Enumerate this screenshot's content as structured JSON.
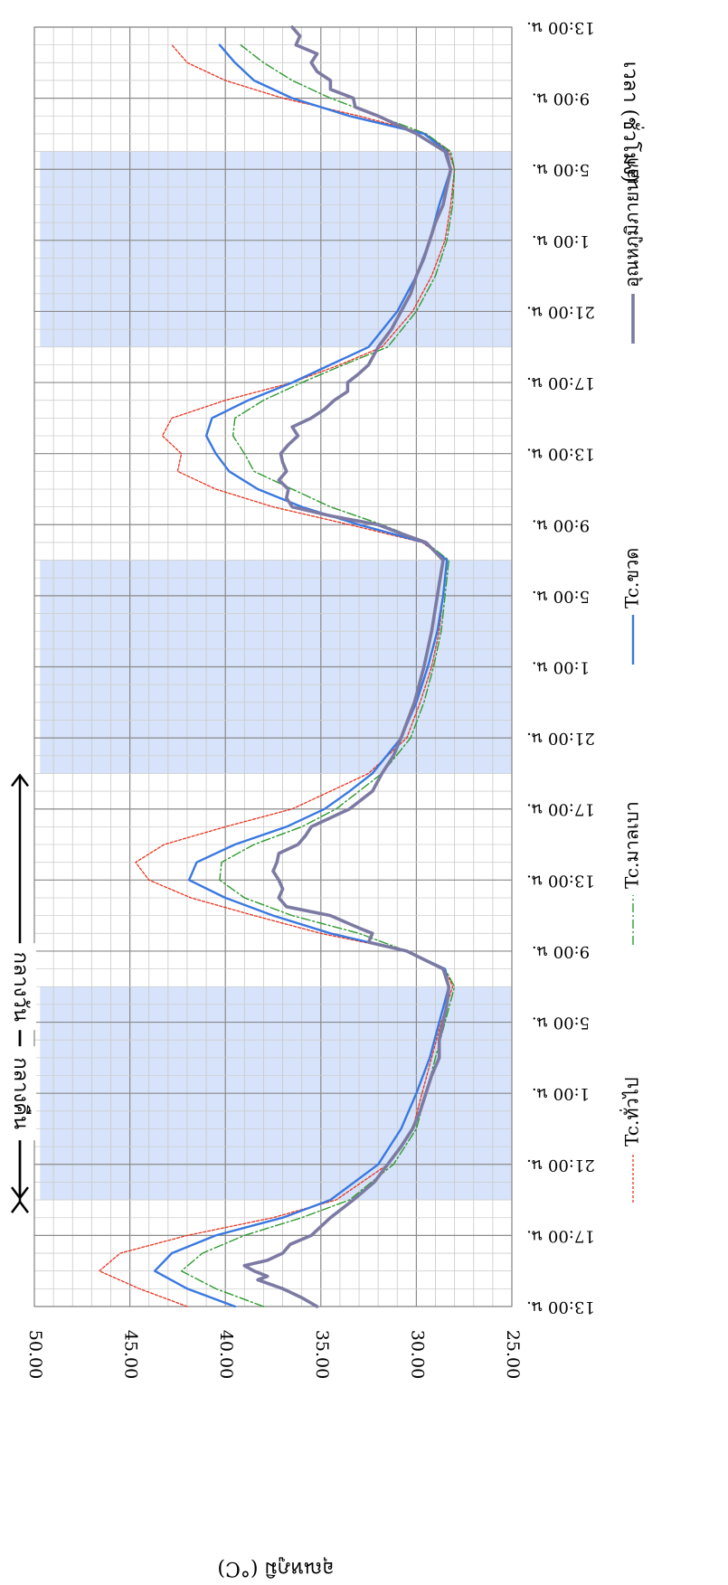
{
  "chart_data": {
    "type": "line",
    "orientation": "rotated-90-clockwise",
    "xlabel": "เวลา (ชั่วโมง)",
    "ylabel": "อุณหภูมิ (°C)",
    "x_unit": "hours since start (13:00 น. day 1)",
    "xlim": [
      0,
      72
    ],
    "ylim": [
      25,
      50
    ],
    "y_ticks": [
      "25.00",
      "30.00",
      "35.00",
      "40.00",
      "45.00",
      "50.00"
    ],
    "x_tick_labels": [
      "13:00 น.",
      "17:00 น.",
      "21:00 น.",
      "1:00 น.",
      "5:00 น.",
      "9:00 น.",
      "13:00 น.",
      "17:00 น.",
      "21:00 น.",
      "1:00 น.",
      "5:00 น.",
      "9:00 น.",
      "13:00 น.",
      "17:00 น.",
      "21:00 น.",
      "1:00 น.",
      "5:00 น.",
      "9:00 น.",
      "13:00 น."
    ],
    "grid": true,
    "night_bands": [
      [
        6,
        18
      ],
      [
        30,
        42
      ],
      [
        54,
        65
      ]
    ],
    "night_color": "#d6e3fa",
    "annotations": {
      "night": "กลางคืน",
      "day": "กลางวัน"
    },
    "legend_position": "bottom",
    "series": [
      {
        "name": "Tc.ทั่วไป",
        "color": "#e8331f",
        "style": "dotted",
        "points": [
          [
            0,
            42
          ],
          [
            1,
            44.5
          ],
          [
            2,
            46.6
          ],
          [
            3,
            45.5
          ],
          [
            4,
            42
          ],
          [
            5,
            37.5
          ],
          [
            6,
            34.2
          ],
          [
            8,
            31.5
          ],
          [
            10,
            30.2
          ],
          [
            12,
            29.7
          ],
          [
            14,
            29.2
          ],
          [
            16,
            28.7
          ],
          [
            18,
            28.1
          ],
          [
            19,
            28.5
          ],
          [
            20,
            30.5
          ],
          [
            21,
            35
          ],
          [
            22,
            38.5
          ],
          [
            23,
            41.8
          ],
          [
            24,
            44
          ],
          [
            25,
            44.7
          ],
          [
            26,
            43.2
          ],
          [
            27,
            40
          ],
          [
            28,
            36.5
          ],
          [
            29,
            34.5
          ],
          [
            30,
            32.5
          ],
          [
            32,
            30.5
          ],
          [
            34,
            29.8
          ],
          [
            36,
            29.2
          ],
          [
            38,
            28.8
          ],
          [
            40,
            28.6
          ],
          [
            42,
            28.4
          ],
          [
            43,
            29.7
          ],
          [
            44,
            33.5
          ],
          [
            45,
            37.5
          ],
          [
            46,
            40.5
          ],
          [
            47,
            42.5
          ],
          [
            48,
            42.3
          ],
          [
            49,
            43.3
          ],
          [
            50,
            42.8
          ],
          [
            51,
            40
          ],
          [
            52,
            36.5
          ],
          [
            53,
            34
          ],
          [
            54,
            31.8
          ],
          [
            56,
            30.2
          ],
          [
            58,
            29.2
          ],
          [
            60,
            28.5
          ],
          [
            62,
            28.2
          ],
          [
            64,
            28
          ],
          [
            65,
            28.3
          ],
          [
            66,
            29.5
          ],
          [
            67,
            33
          ],
          [
            68,
            37
          ],
          [
            69,
            40
          ],
          [
            70,
            42
          ],
          [
            71,
            42.8
          ]
        ]
      },
      {
        "name": "Tc.มาลเบา",
        "color": "#2f9a2f",
        "style": "dash-dot",
        "points": [
          [
            0,
            38
          ],
          [
            1,
            40.5
          ],
          [
            2,
            42.3
          ],
          [
            3,
            41.2
          ],
          [
            4,
            39
          ],
          [
            5,
            36
          ],
          [
            6,
            33.5
          ],
          [
            8,
            31.2
          ],
          [
            10,
            30
          ],
          [
            12,
            29.5
          ],
          [
            14,
            29
          ],
          [
            16,
            28.5
          ],
          [
            18,
            28
          ],
          [
            19,
            28.5
          ],
          [
            20,
            30.5
          ],
          [
            21,
            33
          ],
          [
            22,
            36.5
          ],
          [
            23,
            39
          ],
          [
            24,
            40.3
          ],
          [
            25,
            40.2
          ],
          [
            26,
            38.5
          ],
          [
            27,
            36
          ],
          [
            28,
            34.2
          ],
          [
            29,
            33
          ],
          [
            30,
            31.8
          ],
          [
            32,
            30.3
          ],
          [
            34,
            29.6
          ],
          [
            36,
            29.1
          ],
          [
            38,
            28.7
          ],
          [
            40,
            28.5
          ],
          [
            42,
            28.3
          ],
          [
            43,
            29.5
          ],
          [
            44,
            31.8
          ],
          [
            45,
            34.5
          ],
          [
            46,
            36.5
          ],
          [
            47,
            38.5
          ],
          [
            48,
            39
          ],
          [
            49,
            39.6
          ],
          [
            50,
            39.5
          ],
          [
            51,
            38
          ],
          [
            52,
            36
          ],
          [
            53,
            33.8
          ],
          [
            54,
            31.5
          ],
          [
            56,
            30
          ],
          [
            58,
            29
          ],
          [
            60,
            28.4
          ],
          [
            62,
            28.1
          ],
          [
            64,
            28
          ],
          [
            65,
            28.2
          ],
          [
            66,
            29.5
          ],
          [
            67,
            32
          ],
          [
            68,
            34.5
          ],
          [
            69,
            36.5
          ],
          [
            70,
            38
          ],
          [
            71,
            39.2
          ]
        ]
      },
      {
        "name": "Tc.ขวด",
        "color": "#3a78e0",
        "style": "solid",
        "points": [
          [
            0,
            39.5
          ],
          [
            1,
            42
          ],
          [
            2,
            43.7
          ],
          [
            3,
            42.8
          ],
          [
            4,
            40.5
          ],
          [
            5,
            37
          ],
          [
            6,
            34.5
          ],
          [
            8,
            32
          ],
          [
            10,
            30.8
          ],
          [
            12,
            30
          ],
          [
            14,
            29.3
          ],
          [
            16,
            28.8
          ],
          [
            18,
            28.3
          ],
          [
            19,
            28.5
          ],
          [
            20,
            30.5
          ],
          [
            21,
            34.5
          ],
          [
            22,
            37.5
          ],
          [
            23,
            40
          ],
          [
            24,
            41.9
          ],
          [
            25,
            41.5
          ],
          [
            26,
            39.5
          ],
          [
            27,
            36.8
          ],
          [
            28,
            34.8
          ],
          [
            29,
            33.5
          ],
          [
            30,
            32.3
          ],
          [
            32,
            30.8
          ],
          [
            34,
            30
          ],
          [
            36,
            29.4
          ],
          [
            38,
            28.9
          ],
          [
            40,
            28.6
          ],
          [
            42,
            28.4
          ],
          [
            43,
            29.6
          ],
          [
            44,
            33
          ],
          [
            45,
            36
          ],
          [
            46,
            38.3
          ],
          [
            47,
            39.8
          ],
          [
            48,
            40.5
          ],
          [
            49,
            41
          ],
          [
            50,
            40.7
          ],
          [
            51,
            38.8
          ],
          [
            52,
            36.5
          ],
          [
            53,
            34.5
          ],
          [
            54,
            32.5
          ],
          [
            56,
            31
          ],
          [
            58,
            30
          ],
          [
            60,
            29.3
          ],
          [
            62,
            28.8
          ],
          [
            64,
            28.2
          ],
          [
            65,
            28.4
          ],
          [
            66,
            29.6
          ],
          [
            67,
            33.5
          ],
          [
            68,
            36.5
          ],
          [
            69,
            38.5
          ],
          [
            70,
            39.5
          ],
          [
            71,
            40.3
          ]
        ]
      },
      {
        "name": "อุณหภูมิภายนอก",
        "color": "#7c7aa3",
        "style": "thick",
        "points": [
          [
            0,
            35.2
          ],
          [
            0.5,
            36
          ],
          [
            1,
            37
          ],
          [
            1.5,
            38.3
          ],
          [
            1.7,
            37.8
          ],
          [
            2,
            38.5
          ],
          [
            2.3,
            39
          ],
          [
            2.6,
            37.8
          ],
          [
            3,
            37
          ],
          [
            3.5,
            36.6
          ],
          [
            4,
            35.5
          ],
          [
            5,
            34.5
          ],
          [
            6,
            33.3
          ],
          [
            7,
            32.2
          ],
          [
            8,
            31.5
          ],
          [
            9,
            30.8
          ],
          [
            10,
            30.2
          ],
          [
            11,
            29.8
          ],
          [
            12,
            29.5
          ],
          [
            13,
            29.2
          ],
          [
            14,
            28.8
          ],
          [
            15,
            28.8
          ],
          [
            16,
            28.6
          ],
          [
            17,
            28.4
          ],
          [
            18,
            28.3
          ],
          [
            19,
            28.6
          ],
          [
            20,
            30.5
          ],
          [
            20.5,
            32.5
          ],
          [
            21,
            32.3
          ],
          [
            21.3,
            33
          ],
          [
            22,
            34.5
          ],
          [
            22.5,
            36.8
          ],
          [
            23,
            37.2
          ],
          [
            23.5,
            37
          ],
          [
            24,
            37.2
          ],
          [
            24.5,
            37.5
          ],
          [
            25,
            37.3
          ],
          [
            25.5,
            37.2
          ],
          [
            26,
            36.2
          ],
          [
            26.5,
            35.8
          ],
          [
            27,
            35.5
          ],
          [
            27.5,
            34.5
          ],
          [
            28,
            33.5
          ],
          [
            29,
            32.3
          ],
          [
            30,
            31.8
          ],
          [
            31,
            31.2
          ],
          [
            32,
            30.8
          ],
          [
            34,
            30.1
          ],
          [
            36,
            29.6
          ],
          [
            38,
            29.2
          ],
          [
            40,
            28.9
          ],
          [
            42,
            28.6
          ],
          [
            43,
            29.5
          ],
          [
            43.5,
            30.8
          ],
          [
            44,
            32
          ],
          [
            44.5,
            34.5
          ],
          [
            45,
            36.5
          ],
          [
            45.5,
            36.8
          ],
          [
            46,
            36.7
          ],
          [
            46.5,
            37.2
          ],
          [
            47,
            36.8
          ],
          [
            47.5,
            37
          ],
          [
            48,
            37.1
          ],
          [
            48.5,
            36.7
          ],
          [
            49,
            36.2
          ],
          [
            49.5,
            36.5
          ],
          [
            50,
            35.5
          ],
          [
            50.5,
            34.8
          ],
          [
            51,
            34.3
          ],
          [
            51.5,
            33.6
          ],
          [
            52,
            33.6
          ],
          [
            52.5,
            33
          ],
          [
            53,
            32.5
          ],
          [
            54,
            32
          ],
          [
            55,
            31.3
          ],
          [
            56,
            30.8
          ],
          [
            57,
            30.3
          ],
          [
            58,
            30
          ],
          [
            59,
            29.6
          ],
          [
            60,
            29.3
          ],
          [
            61,
            29
          ],
          [
            62,
            28.6
          ],
          [
            63,
            28.4
          ],
          [
            64,
            28.2
          ],
          [
            65,
            28.5
          ],
          [
            66,
            30
          ],
          [
            67,
            32
          ],
          [
            67.5,
            33.2
          ],
          [
            68,
            33.3
          ],
          [
            68.5,
            34.5
          ],
          [
            69,
            34.5
          ],
          [
            69.5,
            35.2
          ],
          [
            70,
            35.5
          ],
          [
            70.5,
            35.2
          ],
          [
            71,
            36.3
          ],
          [
            71.5,
            36.1
          ],
          [
            72,
            36.5
          ]
        ]
      }
    ]
  }
}
